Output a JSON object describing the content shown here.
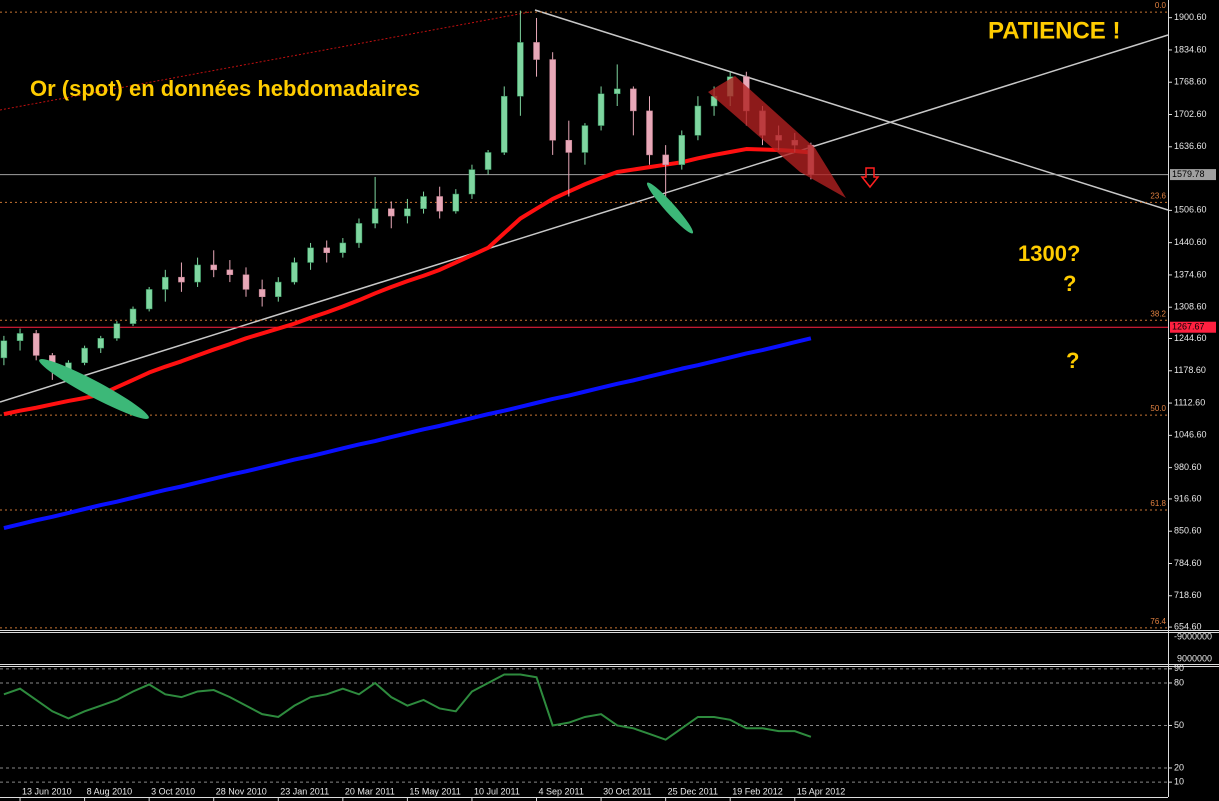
{
  "chart_data": [
    {
      "type": "candlestick",
      "categories": [
        null,
        "13 Jun 2010",
        null,
        null,
        null,
        "8 Aug 2010",
        null,
        null,
        null,
        "3 Oct 2010",
        null,
        null,
        null,
        "28 Nov 2010",
        null,
        null,
        null,
        "23 Jan 2011",
        null,
        null,
        null,
        "20 Mar 2011",
        null,
        null,
        null,
        "15 May 2011",
        null,
        null,
        null,
        "10 Jul 2011",
        null,
        null,
        null,
        "4 Sep 2011",
        null,
        null,
        null,
        "30 Oct 2011",
        null,
        null,
        null,
        "25 Dec 2011",
        null,
        null,
        null,
        "19 Feb 2012",
        null,
        null,
        null,
        "15 Apr 2012",
        null
      ],
      "open": [
        1205,
        1240,
        1255,
        1210,
        1180,
        1195,
        1225,
        1245,
        1275,
        1305,
        1345,
        1370,
        1360,
        1395,
        1385,
        1375,
        1345,
        1330,
        1360,
        1400,
        1430,
        1420,
        1440,
        1480,
        1510,
        1495,
        1510,
        1535,
        1505,
        1540,
        1590,
        1625,
        1740,
        1850,
        1815,
        1650,
        1625,
        1680,
        1745,
        1755,
        1710,
        1620,
        1600,
        1660,
        1720,
        1740,
        1780,
        1710,
        1660,
        1650,
        1640
      ],
      "high": [
        1250,
        1265,
        1262,
        1215,
        1200,
        1230,
        1250,
        1280,
        1310,
        1350,
        1385,
        1400,
        1410,
        1425,
        1405,
        1390,
        1365,
        1370,
        1410,
        1440,
        1445,
        1450,
        1490,
        1575,
        1525,
        1530,
        1545,
        1555,
        1550,
        1600,
        1630,
        1760,
        1915,
        1900,
        1830,
        1690,
        1685,
        1760,
        1805,
        1760,
        1740,
        1640,
        1670,
        1740,
        1760,
        1790,
        1790,
        1720,
        1680,
        1665,
        1645
      ],
      "low": [
        1190,
        1220,
        1200,
        1160,
        1170,
        1190,
        1215,
        1240,
        1270,
        1300,
        1320,
        1340,
        1350,
        1370,
        1360,
        1330,
        1310,
        1320,
        1355,
        1385,
        1400,
        1410,
        1430,
        1470,
        1470,
        1480,
        1500,
        1490,
        1500,
        1530,
        1580,
        1620,
        1700,
        1780,
        1620,
        1535,
        1600,
        1670,
        1720,
        1660,
        1600,
        1530,
        1590,
        1650,
        1700,
        1720,
        1680,
        1640,
        1630,
        1625,
        1570
      ],
      "close": [
        1240,
        1255,
        1210,
        1180,
        1195,
        1225,
        1245,
        1275,
        1305,
        1345,
        1370,
        1360,
        1395,
        1385,
        1375,
        1345,
        1330,
        1360,
        1400,
        1430,
        1420,
        1440,
        1480,
        1510,
        1495,
        1510,
        1535,
        1505,
        1540,
        1590,
        1625,
        1740,
        1850,
        1815,
        1650,
        1625,
        1680,
        1745,
        1755,
        1710,
        1620,
        1600,
        1660,
        1720,
        1740,
        1780,
        1710,
        1660,
        1650,
        1640,
        1580
      ],
      "up_color": "#7fd6a0",
      "down_color": "#e8a8b8",
      "lines": [
        {
          "color": "#ff1010",
          "values": [
            1090,
            1097,
            1103,
            1110,
            1117,
            1123,
            1130,
            1145,
            1160,
            1175,
            1187,
            1198,
            1210,
            1222,
            1233,
            1245,
            1255,
            1265,
            1275,
            1287,
            1298,
            1310,
            1323,
            1337,
            1350,
            1362,
            1373,
            1385,
            1400,
            1415,
            1430,
            1460,
            1490,
            1510,
            1530,
            1545,
            1560,
            1573,
            1585,
            1590,
            1595,
            1600,
            1605,
            1613,
            1620,
            1626,
            1632,
            1631,
            1630,
            1628,
            1625
          ]
        },
        {
          "color": "#0a10ff",
          "values": [
            857,
            865,
            873,
            880,
            888,
            896,
            904,
            911,
            919,
            927,
            935,
            942,
            950,
            958,
            966,
            973,
            981,
            989,
            997,
            1004,
            1012,
            1020,
            1028,
            1035,
            1043,
            1051,
            1059,
            1066,
            1074,
            1082,
            1090,
            1097,
            1105,
            1113,
            1121,
            1128,
            1136,
            1144,
            1152,
            1159,
            1167,
            1175,
            1183,
            1190,
            1198,
            1206,
            1214,
            1221,
            1229,
            1237,
            1245
          ]
        }
      ],
      "ylim": [
        648.6,
        1930.6
      ],
      "yticks": [
        {
          "value": 1900.6,
          "label": "1900.60"
        },
        {
          "value": 1834.6,
          "label": "1834.60"
        },
        {
          "value": 1768.6,
          "label": "1768.60"
        },
        {
          "value": 1702.6,
          "label": "1702.60"
        },
        {
          "value": 1636.6,
          "label": "1636.60"
        },
        {
          "value": 1506.6,
          "label": "1506.60"
        },
        {
          "value": 1440.6,
          "label": "1440.60"
        },
        {
          "value": 1374.6,
          "label": "1374.60"
        },
        {
          "value": 1308.6,
          "label": "1308.60"
        },
        {
          "value": 1244.6,
          "label": "1244.60"
        },
        {
          "value": 1178.6,
          "label": "1178.60"
        },
        {
          "value": 1112.6,
          "label": "1112.60"
        },
        {
          "value": 1046.6,
          "label": "1046.60"
        },
        {
          "value": 980.6,
          "label": "980.60"
        },
        {
          "value": 916.6,
          "label": "916.60"
        },
        {
          "value": 850.6,
          "label": "850.60"
        },
        {
          "value": 784.6,
          "label": "784.60"
        },
        {
          "value": 718.6,
          "label": "718.60"
        },
        {
          "value": 654.6,
          "label": "654.60"
        }
      ],
      "levels": [
        {
          "value": 1912,
          "label": "0.0"
        },
        {
          "value": 1523,
          "label": "23.6"
        },
        {
          "value": 1282,
          "label": "38.2"
        },
        {
          "value": 1088,
          "label": "50.0"
        },
        {
          "value": 894,
          "label": "61.8"
        },
        {
          "value": 653,
          "label": "76.4"
        }
      ],
      "price_lines": [
        {
          "value": 1579.78,
          "color": "#a0a0a0"
        },
        {
          "value": 1267.67,
          "color": "#ff2040"
        }
      ],
      "annotations": [
        "Or (spot) en données hebdomadaires",
        "PATIENCE !",
        "1300?",
        "?",
        "?"
      ]
    },
    {
      "type": "line",
      "color": "#2e8b3e",
      "values": [
        72,
        76,
        68,
        60,
        55,
        60,
        64,
        68,
        74,
        79,
        72,
        70,
        74,
        75,
        70,
        64,
        58,
        56,
        64,
        70,
        72,
        76,
        72,
        80,
        70,
        64,
        68,
        62,
        60,
        74,
        80,
        86,
        86,
        84,
        50,
        52,
        56,
        58,
        50,
        48,
        44,
        40,
        48,
        56,
        56,
        54,
        48,
        48,
        46,
        46,
        42
      ],
      "ylim": [
        0,
        91
      ],
      "yticks": [
        90,
        80,
        50,
        20,
        10
      ]
    }
  ],
  "indicator_labels": [
    "-9000000",
    "9000000"
  ]
}
